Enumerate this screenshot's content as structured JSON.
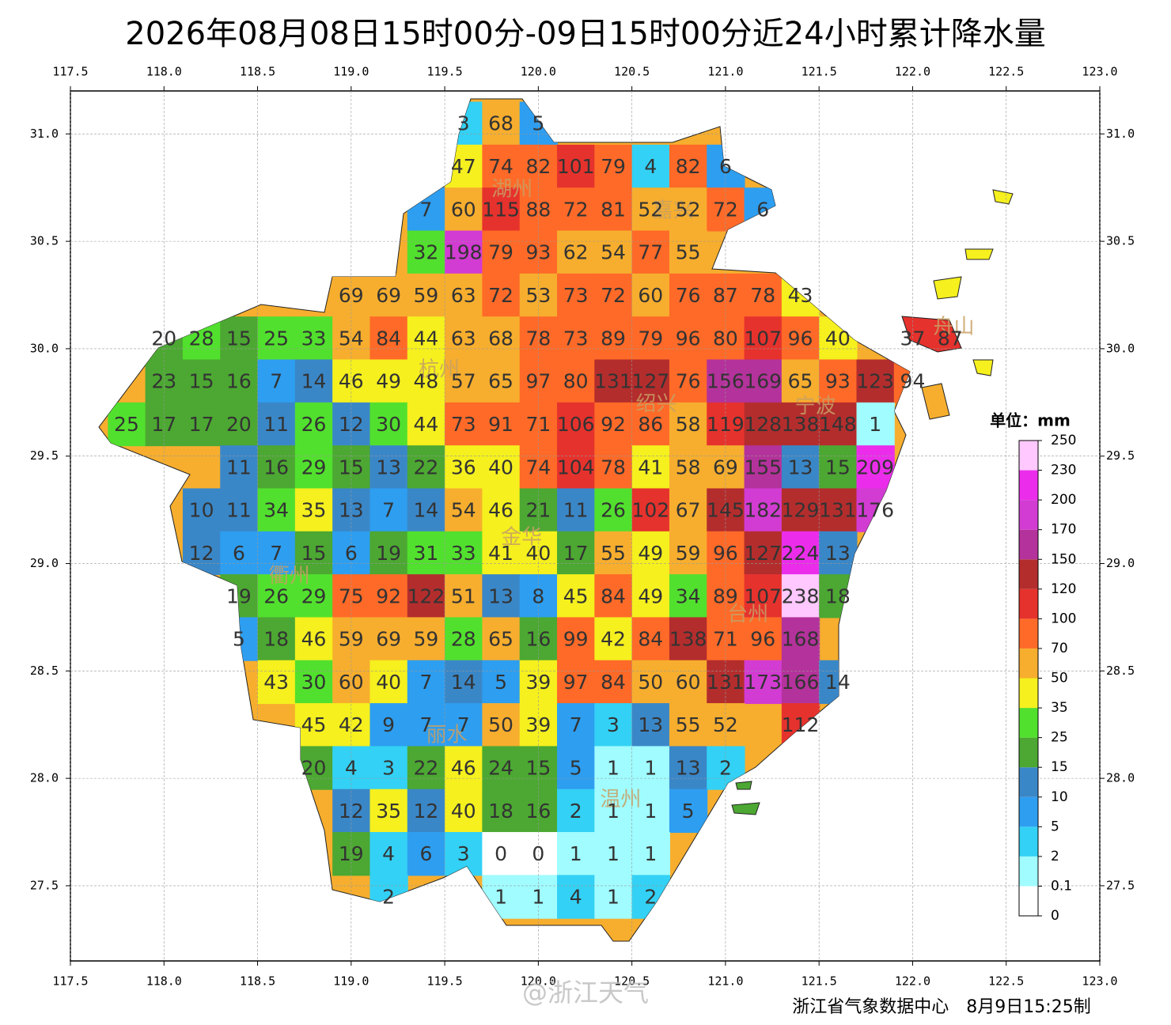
{
  "title": "2026年08月08日15时00分-09日15时00分近24小时累计降水量",
  "xlim": [
    117.5,
    123.0
  ],
  "ylim": [
    27.15,
    31.2
  ],
  "xticks": [
    {
      "value": 117.5,
      "label": "117.5"
    },
    {
      "value": 118.0,
      "label": "118.0"
    },
    {
      "value": 118.5,
      "label": "118.5"
    },
    {
      "value": 119.0,
      "label": "119.0"
    },
    {
      "value": 119.5,
      "label": "119.5"
    },
    {
      "value": 120.0,
      "label": "120.0"
    },
    {
      "value": 120.5,
      "label": "120.5"
    },
    {
      "value": 121.0,
      "label": "121.0"
    },
    {
      "value": 121.5,
      "label": "121.5"
    },
    {
      "value": 122.0,
      "label": "122.0"
    },
    {
      "value": 122.5,
      "label": "122.5"
    },
    {
      "value": 123.0,
      "label": "123.0"
    }
  ],
  "yticks": [
    {
      "value": 27.5,
      "label": "27.5"
    },
    {
      "value": 28.0,
      "label": "28.0"
    },
    {
      "value": 28.5,
      "label": "28.5"
    },
    {
      "value": 29.0,
      "label": "29.0"
    },
    {
      "value": 29.5,
      "label": "29.5"
    },
    {
      "value": 30.0,
      "label": "30.0"
    },
    {
      "value": 30.5,
      "label": "30.5"
    },
    {
      "value": 31.0,
      "label": "31.0"
    }
  ],
  "grid": true,
  "grid_lons": [
    117.8,
    118.0,
    118.2,
    118.4,
    118.6,
    118.8,
    119.0,
    119.2,
    119.4,
    119.6,
    119.8,
    120.0,
    120.2,
    120.4,
    120.6,
    120.8,
    121.0,
    121.2,
    121.4,
    121.6,
    121.8,
    122.0,
    122.2
  ],
  "rows": [
    {
      "lat": 31.05,
      "values": [
        null,
        null,
        null,
        null,
        null,
        null,
        null,
        null,
        null,
        3,
        68,
        5,
        null,
        null,
        null,
        null,
        null,
        null,
        null,
        null,
        null,
        null,
        null
      ]
    },
    {
      "lat": 30.85,
      "values": [
        null,
        null,
        null,
        null,
        null,
        null,
        null,
        null,
        null,
        47,
        74,
        82,
        101,
        79,
        4,
        82,
        6,
        null,
        null,
        null,
        null,
        null,
        null
      ]
    },
    {
      "lat": 30.65,
      "values": [
        null,
        null,
        null,
        null,
        null,
        null,
        null,
        null,
        7,
        60,
        115,
        88,
        72,
        81,
        52,
        52,
        72,
        6,
        null,
        null,
        null,
        null,
        null
      ]
    },
    {
      "lat": 30.45,
      "values": [
        null,
        null,
        null,
        null,
        null,
        null,
        null,
        null,
        32,
        198,
        79,
        93,
        62,
        54,
        77,
        55,
        null,
        null,
        null,
        null,
        null,
        null,
        null
      ]
    },
    {
      "lat": 30.25,
      "values": [
        null,
        null,
        null,
        null,
        null,
        null,
        69,
        69,
        59,
        63,
        72,
        53,
        73,
        72,
        60,
        76,
        87,
        78,
        43,
        null,
        null,
        null,
        null
      ]
    },
    {
      "lat": 30.05,
      "values": [
        null,
        20,
        28,
        15,
        25,
        33,
        54,
        84,
        44,
        63,
        68,
        78,
        73,
        89,
        79,
        96,
        80,
        107,
        96,
        40,
        null,
        37,
        87
      ]
    },
    {
      "lat": 29.85,
      "values": [
        null,
        23,
        15,
        16,
        7,
        14,
        46,
        49,
        48,
        57,
        65,
        97,
        80,
        131,
        127,
        76,
        156,
        169,
        65,
        93,
        123,
        94,
        null
      ]
    },
    {
      "lat": 29.65,
      "values": [
        25,
        17,
        17,
        20,
        11,
        26,
        12,
        30,
        44,
        73,
        91,
        71,
        106,
        92,
        86,
        58,
        119,
        128,
        138,
        148,
        1,
        null,
        null
      ]
    },
    {
      "lat": 29.45,
      "values": [
        null,
        null,
        null,
        11,
        16,
        29,
        15,
        13,
        22,
        36,
        40,
        74,
        104,
        78,
        41,
        58,
        69,
        155,
        13,
        15,
        209,
        null,
        null
      ]
    },
    {
      "lat": 29.25,
      "values": [
        null,
        null,
        10,
        11,
        34,
        35,
        13,
        7,
        14,
        54,
        46,
        21,
        11,
        26,
        102,
        67,
        145,
        182,
        129,
        131,
        176,
        null,
        null
      ]
    },
    {
      "lat": 29.05,
      "values": [
        null,
        null,
        12,
        6,
        7,
        15,
        6,
        19,
        31,
        33,
        41,
        40,
        17,
        55,
        49,
        59,
        96,
        127,
        224,
        13,
        null,
        null,
        null
      ]
    },
    {
      "lat": 28.85,
      "values": [
        null,
        null,
        null,
        19,
        26,
        29,
        75,
        92,
        122,
        51,
        13,
        8,
        45,
        84,
        49,
        34,
        89,
        107,
        238,
        18,
        null,
        null,
        null
      ]
    },
    {
      "lat": 28.65,
      "values": [
        null,
        null,
        null,
        5,
        18,
        46,
        59,
        69,
        59,
        28,
        65,
        16,
        99,
        42,
        84,
        138,
        71,
        96,
        168,
        null,
        null,
        null,
        null
      ]
    },
    {
      "lat": 28.45,
      "values": [
        null,
        null,
        null,
        null,
        43,
        30,
        60,
        40,
        7,
        14,
        5,
        39,
        97,
        84,
        50,
        60,
        131,
        173,
        166,
        14,
        null,
        null,
        null
      ]
    },
    {
      "lat": 28.25,
      "values": [
        null,
        null,
        null,
        null,
        null,
        45,
        42,
        9,
        7,
        7,
        50,
        39,
        7,
        3,
        13,
        55,
        52,
        null,
        112,
        null,
        null,
        null,
        null
      ]
    },
    {
      "lat": 28.05,
      "values": [
        null,
        null,
        null,
        null,
        null,
        20,
        4,
        3,
        22,
        46,
        24,
        15,
        5,
        1,
        1,
        13,
        2,
        null,
        null,
        null,
        null,
        null,
        null
      ]
    },
    {
      "lat": 27.85,
      "values": [
        null,
        null,
        null,
        null,
        null,
        null,
        12,
        35,
        12,
        40,
        18,
        16,
        2,
        1,
        1,
        5,
        null,
        null,
        null,
        null,
        null,
        null,
        null
      ]
    },
    {
      "lat": 27.65,
      "values": [
        null,
        null,
        null,
        null,
        null,
        null,
        19,
        4,
        6,
        3,
        0,
        0,
        1,
        1,
        1,
        null,
        null,
        null,
        null,
        null,
        null,
        null,
        null
      ]
    },
    {
      "lat": 27.45,
      "values": [
        null,
        null,
        null,
        null,
        null,
        null,
        null,
        2,
        null,
        null,
        1,
        1,
        4,
        1,
        2,
        null,
        null,
        null,
        null,
        null,
        null,
        null,
        null
      ]
    }
  ],
  "cities": [
    {
      "name": "湖州",
      "lon": 119.86,
      "lat": 30.74
    },
    {
      "name": "嘉兴",
      "lon": 120.72,
      "lat": 30.64
    },
    {
      "name": "杭州",
      "lon": 119.47,
      "lat": 29.9
    },
    {
      "name": "绍兴",
      "lon": 120.63,
      "lat": 29.74
    },
    {
      "name": "宁波",
      "lon": 121.48,
      "lat": 29.73
    },
    {
      "name": "舟山",
      "lon": 122.22,
      "lat": 30.1
    },
    {
      "name": "金华",
      "lon": 119.91,
      "lat": 29.12
    },
    {
      "name": "衢州",
      "lon": 118.67,
      "lat": 28.94
    },
    {
      "name": "台州",
      "lon": 121.12,
      "lat": 28.76
    },
    {
      "name": "丽水",
      "lon": 119.51,
      "lat": 28.2
    },
    {
      "name": "温州",
      "lon": 120.44,
      "lat": 27.9
    }
  ],
  "colorbar": {
    "title": "单位：mm",
    "levels": [
      0,
      0.1,
      2,
      5,
      10,
      15,
      25,
      35,
      50,
      70,
      100,
      120,
      150,
      170,
      200,
      230,
      250
    ],
    "colors": [
      "#ffffff",
      "#a0fcff",
      "#33d1f5",
      "#2e9ef0",
      "#3a87c8",
      "#4ca832",
      "#52e02e",
      "#f5f01e",
      "#f7ae2e",
      "#ff6a28",
      "#e6322d",
      "#b42d2d",
      "#b4329b",
      "#d23cd2",
      "#eb2deb",
      "#ffc8ff"
    ]
  },
  "footer": "浙江省气象数据中心　8月9日15:25制",
  "watermark": "@浙江天气"
}
